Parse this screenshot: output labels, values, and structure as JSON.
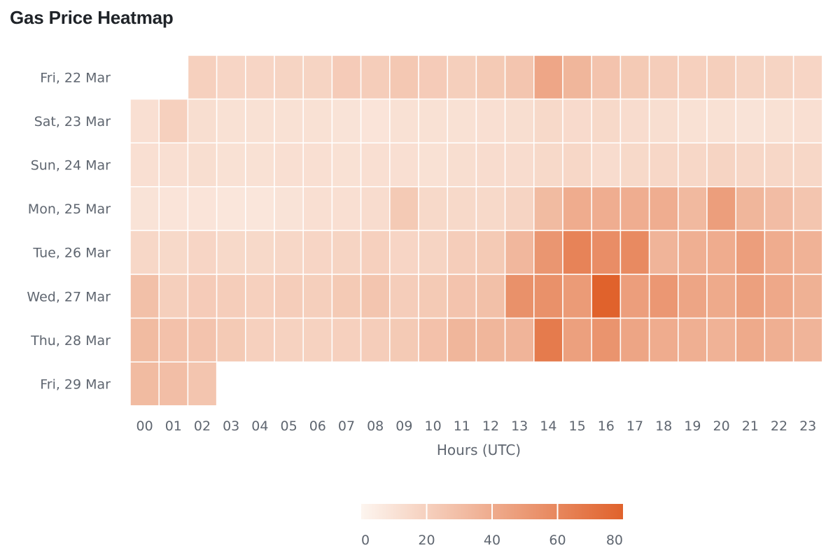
{
  "chart_data": {
    "type": "heatmap",
    "title": "Gas Price Heatmap",
    "xlabel": "Hours (UTC)",
    "ylabel": "",
    "x_categories": [
      "00",
      "01",
      "02",
      "03",
      "04",
      "05",
      "06",
      "07",
      "08",
      "09",
      "10",
      "11",
      "12",
      "13",
      "14",
      "15",
      "16",
      "17",
      "18",
      "19",
      "20",
      "21",
      "22",
      "23"
    ],
    "y_categories": [
      "Fri, 22 Mar",
      "Sat, 23 Mar",
      "Sun, 24 Mar",
      "Mon, 25 Mar",
      "Tue, 26 Mar",
      "Wed, 27 Mar",
      "Thu, 28 Mar",
      "Fri, 29 Mar"
    ],
    "values": [
      [
        null,
        null,
        22,
        19,
        19,
        20,
        20,
        25,
        24,
        27,
        25,
        23,
        26,
        29,
        47,
        38,
        30,
        26,
        24,
        22,
        23,
        20,
        20,
        19
      ],
      [
        13,
        22,
        14,
        12,
        12,
        12,
        12,
        11,
        10,
        12,
        12,
        12,
        13,
        14,
        17,
        16,
        17,
        15,
        14,
        12,
        12,
        11,
        12,
        13
      ],
      [
        13,
        13,
        14,
        12,
        12,
        13,
        13,
        12,
        13,
        13,
        12,
        14,
        15,
        15,
        17,
        18,
        15,
        17,
        18,
        18,
        20,
        18,
        18,
        18
      ],
      [
        11,
        10,
        10,
        9,
        9,
        11,
        13,
        13,
        15,
        26,
        17,
        17,
        17,
        20,
        35,
        44,
        43,
        43,
        43,
        36,
        52,
        38,
        34,
        29
      ],
      [
        18,
        17,
        19,
        17,
        17,
        18,
        19,
        20,
        22,
        19,
        20,
        24,
        26,
        37,
        57,
        68,
        62,
        64,
        39,
        42,
        44,
        52,
        44,
        40
      ],
      [
        32,
        23,
        25,
        24,
        22,
        24,
        23,
        26,
        29,
        24,
        26,
        30,
        32,
        60,
        60,
        54,
        88,
        52,
        56,
        48,
        45,
        51,
        46,
        41
      ],
      [
        35,
        31,
        30,
        26,
        22,
        21,
        21,
        22,
        24,
        26,
        31,
        38,
        38,
        39,
        73,
        51,
        58,
        48,
        44,
        42,
        40,
        45,
        42,
        39
      ],
      [
        35,
        33,
        29,
        null,
        null,
        null,
        null,
        null,
        null,
        null,
        null,
        null,
        null,
        null,
        null,
        null,
        null,
        null,
        null,
        null,
        null,
        null,
        null,
        null
      ]
    ],
    "color_scale": {
      "min": 0,
      "max": 88,
      "low_color": "#fdf5ef",
      "high_color": "#e0622c"
    },
    "legend": {
      "ticks": [
        "0",
        "20",
        "40",
        "60",
        "80"
      ],
      "tick_values": [
        0,
        20,
        40,
        60,
        80
      ],
      "range": [
        0,
        80
      ],
      "placement": "bottom-center"
    }
  }
}
